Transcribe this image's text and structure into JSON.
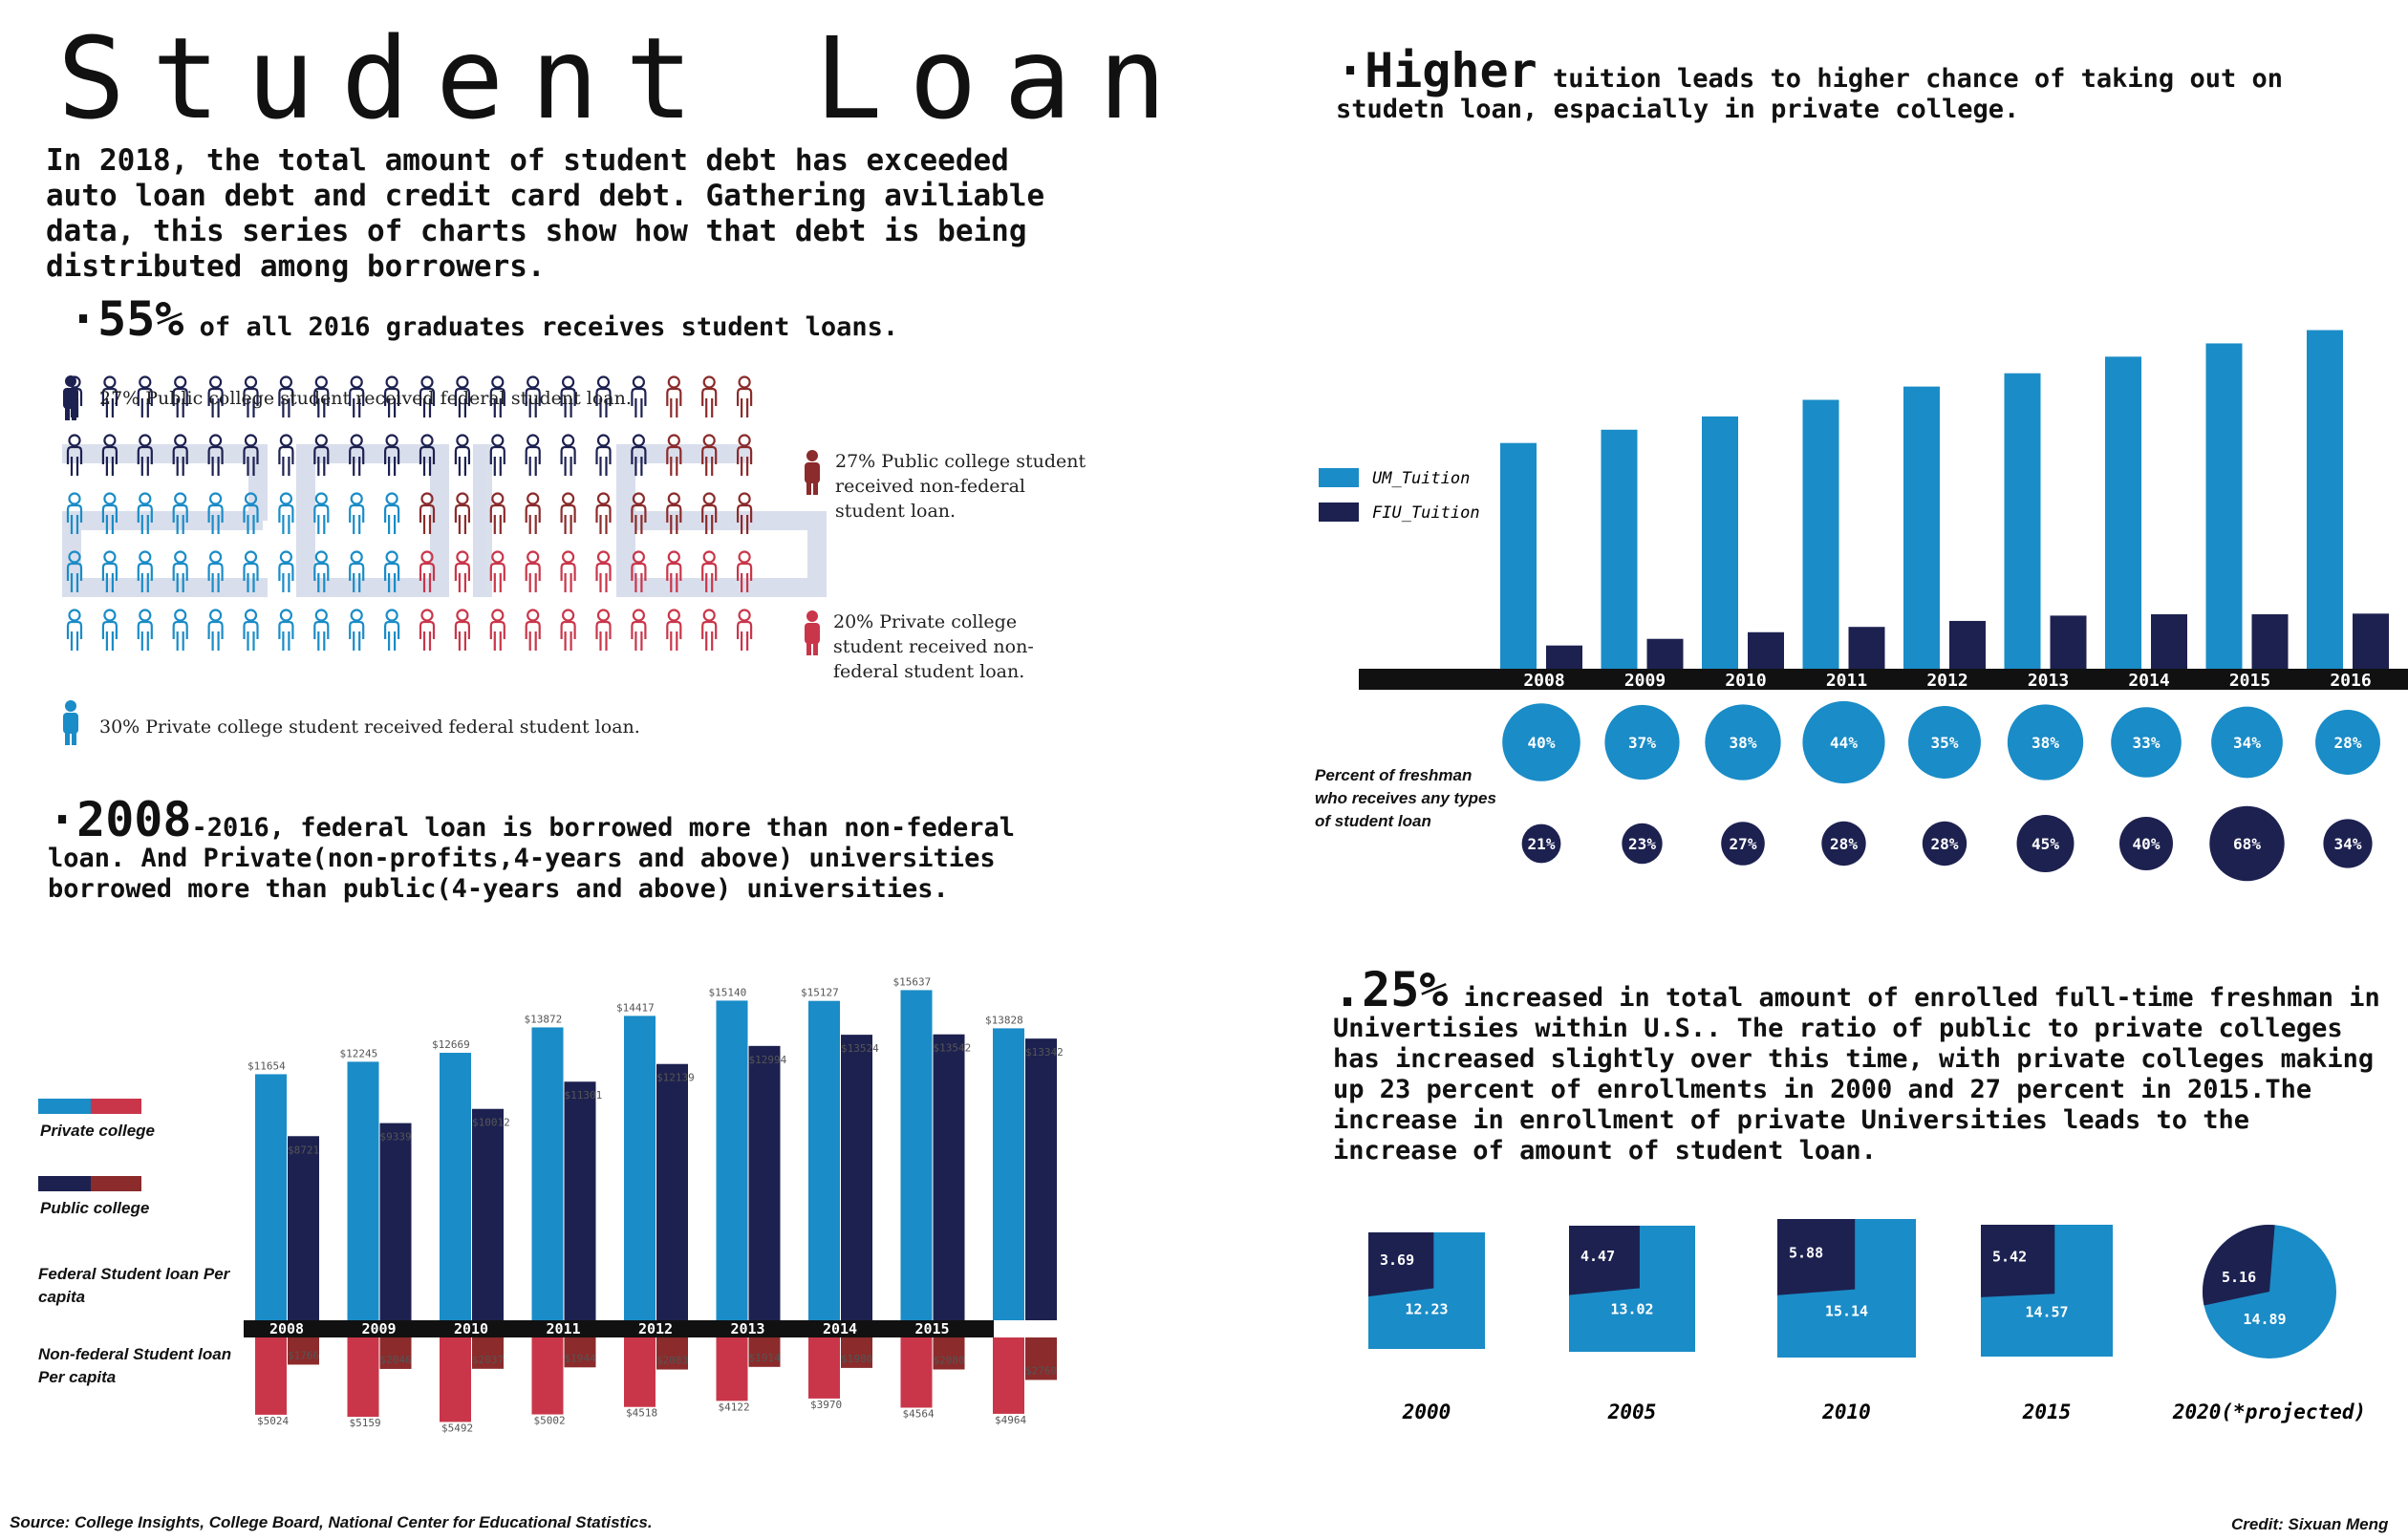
{
  "title": "Student Loan",
  "intro": "In 2018, the total amount of student debt has exceeded auto loan debt and credit card debt. Gathering aviliable data, this series of charts show how that debt is being distributed among borrowers.",
  "section1": {
    "big": "·55%",
    "rest": " of all 2016 graduates receives student loans.",
    "legend": [
      {
        "label": "27% Public college student received federal student loan.",
        "color": "#1d2150"
      },
      {
        "label": "27% Public college student received non-federal student loan.",
        "color": "#8b2b2b"
      },
      {
        "label": "20% Private college student received non-federal student loan.",
        "color": "#c9364a"
      },
      {
        "label": "30% Private college student received federal student loan.",
        "color": "#1a8cc7"
      }
    ]
  },
  "section2": {
    "big": "·2008",
    "rest": "-2016, federal loan is borrowed more than non-federal loan. And Private(non-profits,4-years and above) universities borrowed more than public(4-years and above) universities.",
    "legend_private": "Private college",
    "legend_public": "Public college",
    "federal_label": "Federal Student loan Per capita",
    "nonfederal_label": "Non-federal Student loan Per capita"
  },
  "section3": {
    "big": "·Higher",
    "rest": " tuition leads to higher chance of taking out on studetn loan, espacially in private college.",
    "percent_label": "Percent of freshman who receives any types of student loan"
  },
  "section4": {
    "big": ".25%",
    "rest": " increased in total amount of enrolled full-time freshman in Univertisies within U.S.. The ratio of public to private colleges has increased slightly over this time, with private colleges making up 23 percent of enrollments in 2000 and 27 percent in 2015.The increase in enrollment of private Universities leads to the increase of amount of student loan."
  },
  "source": "Source: College Insights, College Board, National Center for Educational Statistics.",
  "credit": "Credit: Sixuan Meng",
  "colors": {
    "private_fed": "#1a8cc7",
    "public_fed": "#1d2150",
    "private_nonfed": "#c9364a",
    "public_nonfed": "#8b2b2b",
    "axis": "#111111"
  },
  "chart_data": [
    {
      "type": "bar",
      "title": "Federal and non-federal student loan per capita",
      "categories": [
        "2008",
        "2009",
        "2010",
        "2011",
        "2012",
        "2013",
        "2014",
        "2015",
        "2016"
      ],
      "series": [
        {
          "name": "Private college federal",
          "values": [
            11654,
            12245,
            12669,
            13872,
            14417,
            15140,
            15127,
            15637,
            13828
          ]
        },
        {
          "name": "Public college federal",
          "values": [
            8721,
            9339,
            10012,
            11301,
            12139,
            12994,
            13524,
            13542,
            13342
          ]
        },
        {
          "name": "Private college non-federal",
          "values": [
            5024,
            5159,
            5492,
            5002,
            4518,
            4122,
            3970,
            4564,
            4964
          ]
        },
        {
          "name": "Public college non-federal",
          "values": [
            1766,
            2046,
            2037,
            1944,
            2083,
            1914,
            1980,
            2080,
            2760
          ]
        }
      ],
      "labels": {
        "private_fed": [
          "$11654",
          "$12245",
          "$12669",
          "$13872",
          "$14417",
          "$15140",
          "$15127",
          "$15637",
          "$13828"
        ],
        "public_fed": [
          "$8721",
          "$9339",
          "$10012",
          "$11301",
          "$12139",
          "$12994",
          "$13524",
          "$13542",
          "$13342"
        ],
        "private_nonfed": [
          "$5024",
          "$5159",
          "$5492",
          "$5002",
          "$4518",
          "$4122",
          "$3970",
          "$4564",
          "$4964"
        ],
        "public_nonfed": [
          "$1766",
          "$2046",
          "$2037",
          "$1944",
          "$2083",
          "$1914",
          "$1980",
          "$2080",
          "$2760"
        ]
      }
    },
    {
      "type": "bar",
      "categories": [
        "2008",
        "2009",
        "2010",
        "2011",
        "2012",
        "2013",
        "2014",
        "2015",
        "2016"
      ],
      "series": [
        {
          "name": "UM_Tuition",
          "values": [
            34,
            36,
            38,
            40.5,
            42.5,
            44.5,
            47,
            49,
            51
          ]
        },
        {
          "name": "FIU_Tuition",
          "values": [
            3.5,
            4.5,
            5.5,
            6.3,
            7.2,
            8.0,
            8.2,
            8.2,
            8.3
          ]
        }
      ],
      "legend": [
        "UM_Tuition",
        "FIU_Tuition"
      ]
    },
    {
      "type": "bubble",
      "categories": [
        "2008",
        "2009",
        "2010",
        "2011",
        "2012",
        "2013",
        "2014",
        "2015",
        "2016"
      ],
      "series": [
        {
          "name": "UM_Tuition",
          "values": [
            40,
            37,
            38,
            44,
            35,
            38,
            33,
            34,
            28
          ],
          "labels": [
            "40%",
            "37%",
            "38%",
            "44%",
            "35%",
            "38%",
            "33%",
            "34%",
            "28%"
          ]
        },
        {
          "name": "FIU_Tuition",
          "values": [
            21,
            23,
            27,
            28,
            28,
            45,
            40,
            68,
            34
          ],
          "labels": [
            "21%",
            "23%",
            "27%",
            "28%",
            "28%",
            "45%",
            "40%",
            "68%",
            "34%"
          ]
        }
      ]
    },
    {
      "type": "pie",
      "categories": [
        "2000",
        "2005",
        "2010",
        "2015",
        "2020(*projected)"
      ],
      "series": [
        {
          "name": "public",
          "values": [
            12.23,
            13.02,
            15.14,
            14.57,
            14.89
          ]
        },
        {
          "name": "private",
          "values": [
            3.69,
            4.47,
            5.88,
            5.42,
            5.16
          ]
        }
      ],
      "labels_public": [
        "12.23",
        "13.02",
        "15.14",
        "14.57",
        "14.89"
      ],
      "labels_private": [
        "3.69",
        "4.47",
        "5.88",
        "5.42",
        "5.16"
      ]
    }
  ]
}
